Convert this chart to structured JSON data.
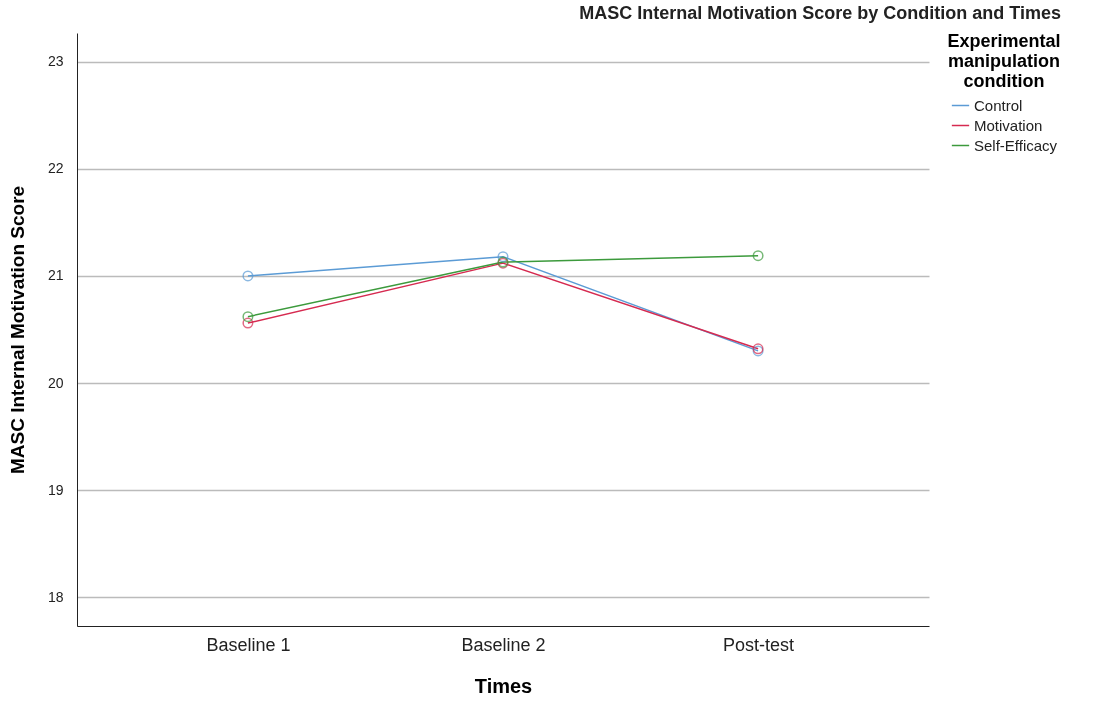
{
  "chart_data": {
    "type": "line",
    "title": "MASC Internal Motivation Score by Condition and Times",
    "xlabel": "Times",
    "ylabel": "MASC Internal Motivation Score",
    "legend_title": "Experimental manipulation condition",
    "categories": [
      "Baseline 1",
      "Baseline 2",
      "Post-test"
    ],
    "series": [
      {
        "name": "Control",
        "color": "#5b9bd5",
        "values": [
          21.0,
          21.18,
          20.3
        ]
      },
      {
        "name": "Motivation",
        "color": "#d62a50",
        "values": [
          20.56,
          21.12,
          20.32
        ]
      },
      {
        "name": "Self-Efficacy",
        "color": "#3c9a3c",
        "values": [
          20.62,
          21.13,
          21.19
        ]
      }
    ],
    "ylim": [
      17.73,
      23.27
    ],
    "yticks": [
      18,
      19,
      20,
      21,
      22,
      23
    ],
    "grid": "y",
    "legend": "top right",
    "marker": "circle",
    "line_style": "solid"
  }
}
